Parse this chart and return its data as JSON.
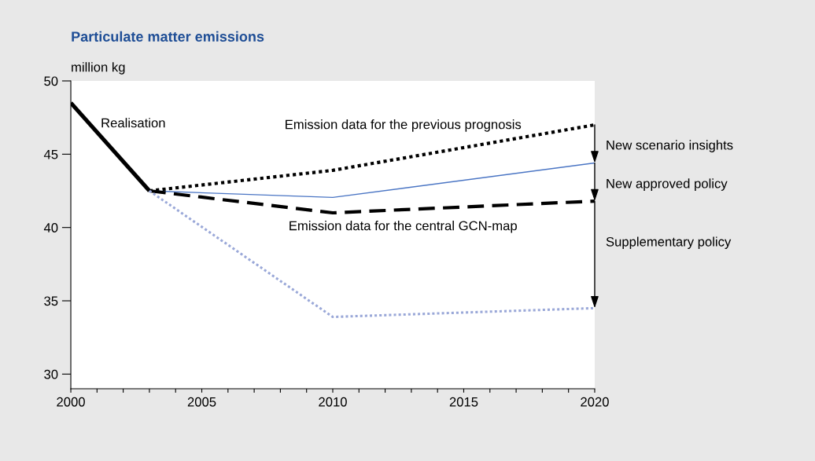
{
  "chart_data": {
    "type": "line",
    "title": "Particulate matter emissions",
    "ylabel": "million kg",
    "series": [
      {
        "name": "Realisation",
        "color": "#000000",
        "line_style": "solid",
        "x": [
          2000,
          2003
        ],
        "values": [
          48.5,
          42.5
        ]
      },
      {
        "name": "Emission data for the previous prognosis",
        "color": "#000000",
        "line_style": "dotted",
        "x": [
          2003,
          2010,
          2020
        ],
        "values": [
          42.5,
          43.9,
          47.0
        ]
      },
      {
        "color": "#4a75c4",
        "line_style": "solid",
        "x": [
          2003,
          2010,
          2020
        ],
        "values": [
          42.5,
          42.05,
          44.4
        ]
      },
      {
        "name": "Emission data for the central GCN-map",
        "color": "#000000",
        "line_style": "dashed",
        "x": [
          2003,
          2010,
          2020
        ],
        "values": [
          42.5,
          41.0,
          41.8
        ]
      },
      {
        "color": "#9aa8d8",
        "line_style": "dotted",
        "x": [
          2003,
          2010,
          2020
        ],
        "values": [
          42.5,
          33.9,
          34.5
        ]
      }
    ],
    "annotations": [
      "New scenario insights",
      "New approved policy",
      "Supplementary policy"
    ],
    "xlim": [
      2000,
      2020
    ],
    "ylim": [
      29,
      50
    ],
    "xticks": [
      2000,
      {
        "value": 2001,
        "label": null
      },
      {
        "value": 2002,
        "label": null
      },
      {
        "value": 2003,
        "label": null
      },
      {
        "value": 2004,
        "label": null
      },
      2005,
      {
        "value": 2006,
        "label": null
      },
      {
        "value": 2007,
        "label": null
      },
      {
        "value": 2008,
        "label": null
      },
      {
        "value": 2009,
        "label": null
      },
      2010,
      {
        "value": 2011,
        "label": null
      },
      {
        "value": 2012,
        "label": null
      },
      {
        "value": 2013,
        "label": null
      },
      {
        "value": 2014,
        "label": null
      },
      2015,
      {
        "value": 2016,
        "label": null
      },
      {
        "value": 2017,
        "label": null
      },
      {
        "value": 2018,
        "label": null
      },
      {
        "value": 2019,
        "label": null
      },
      2020
    ],
    "yticks": [
      30,
      35,
      40,
      45,
      50
    ],
    "grid": false,
    "legend": false
  }
}
